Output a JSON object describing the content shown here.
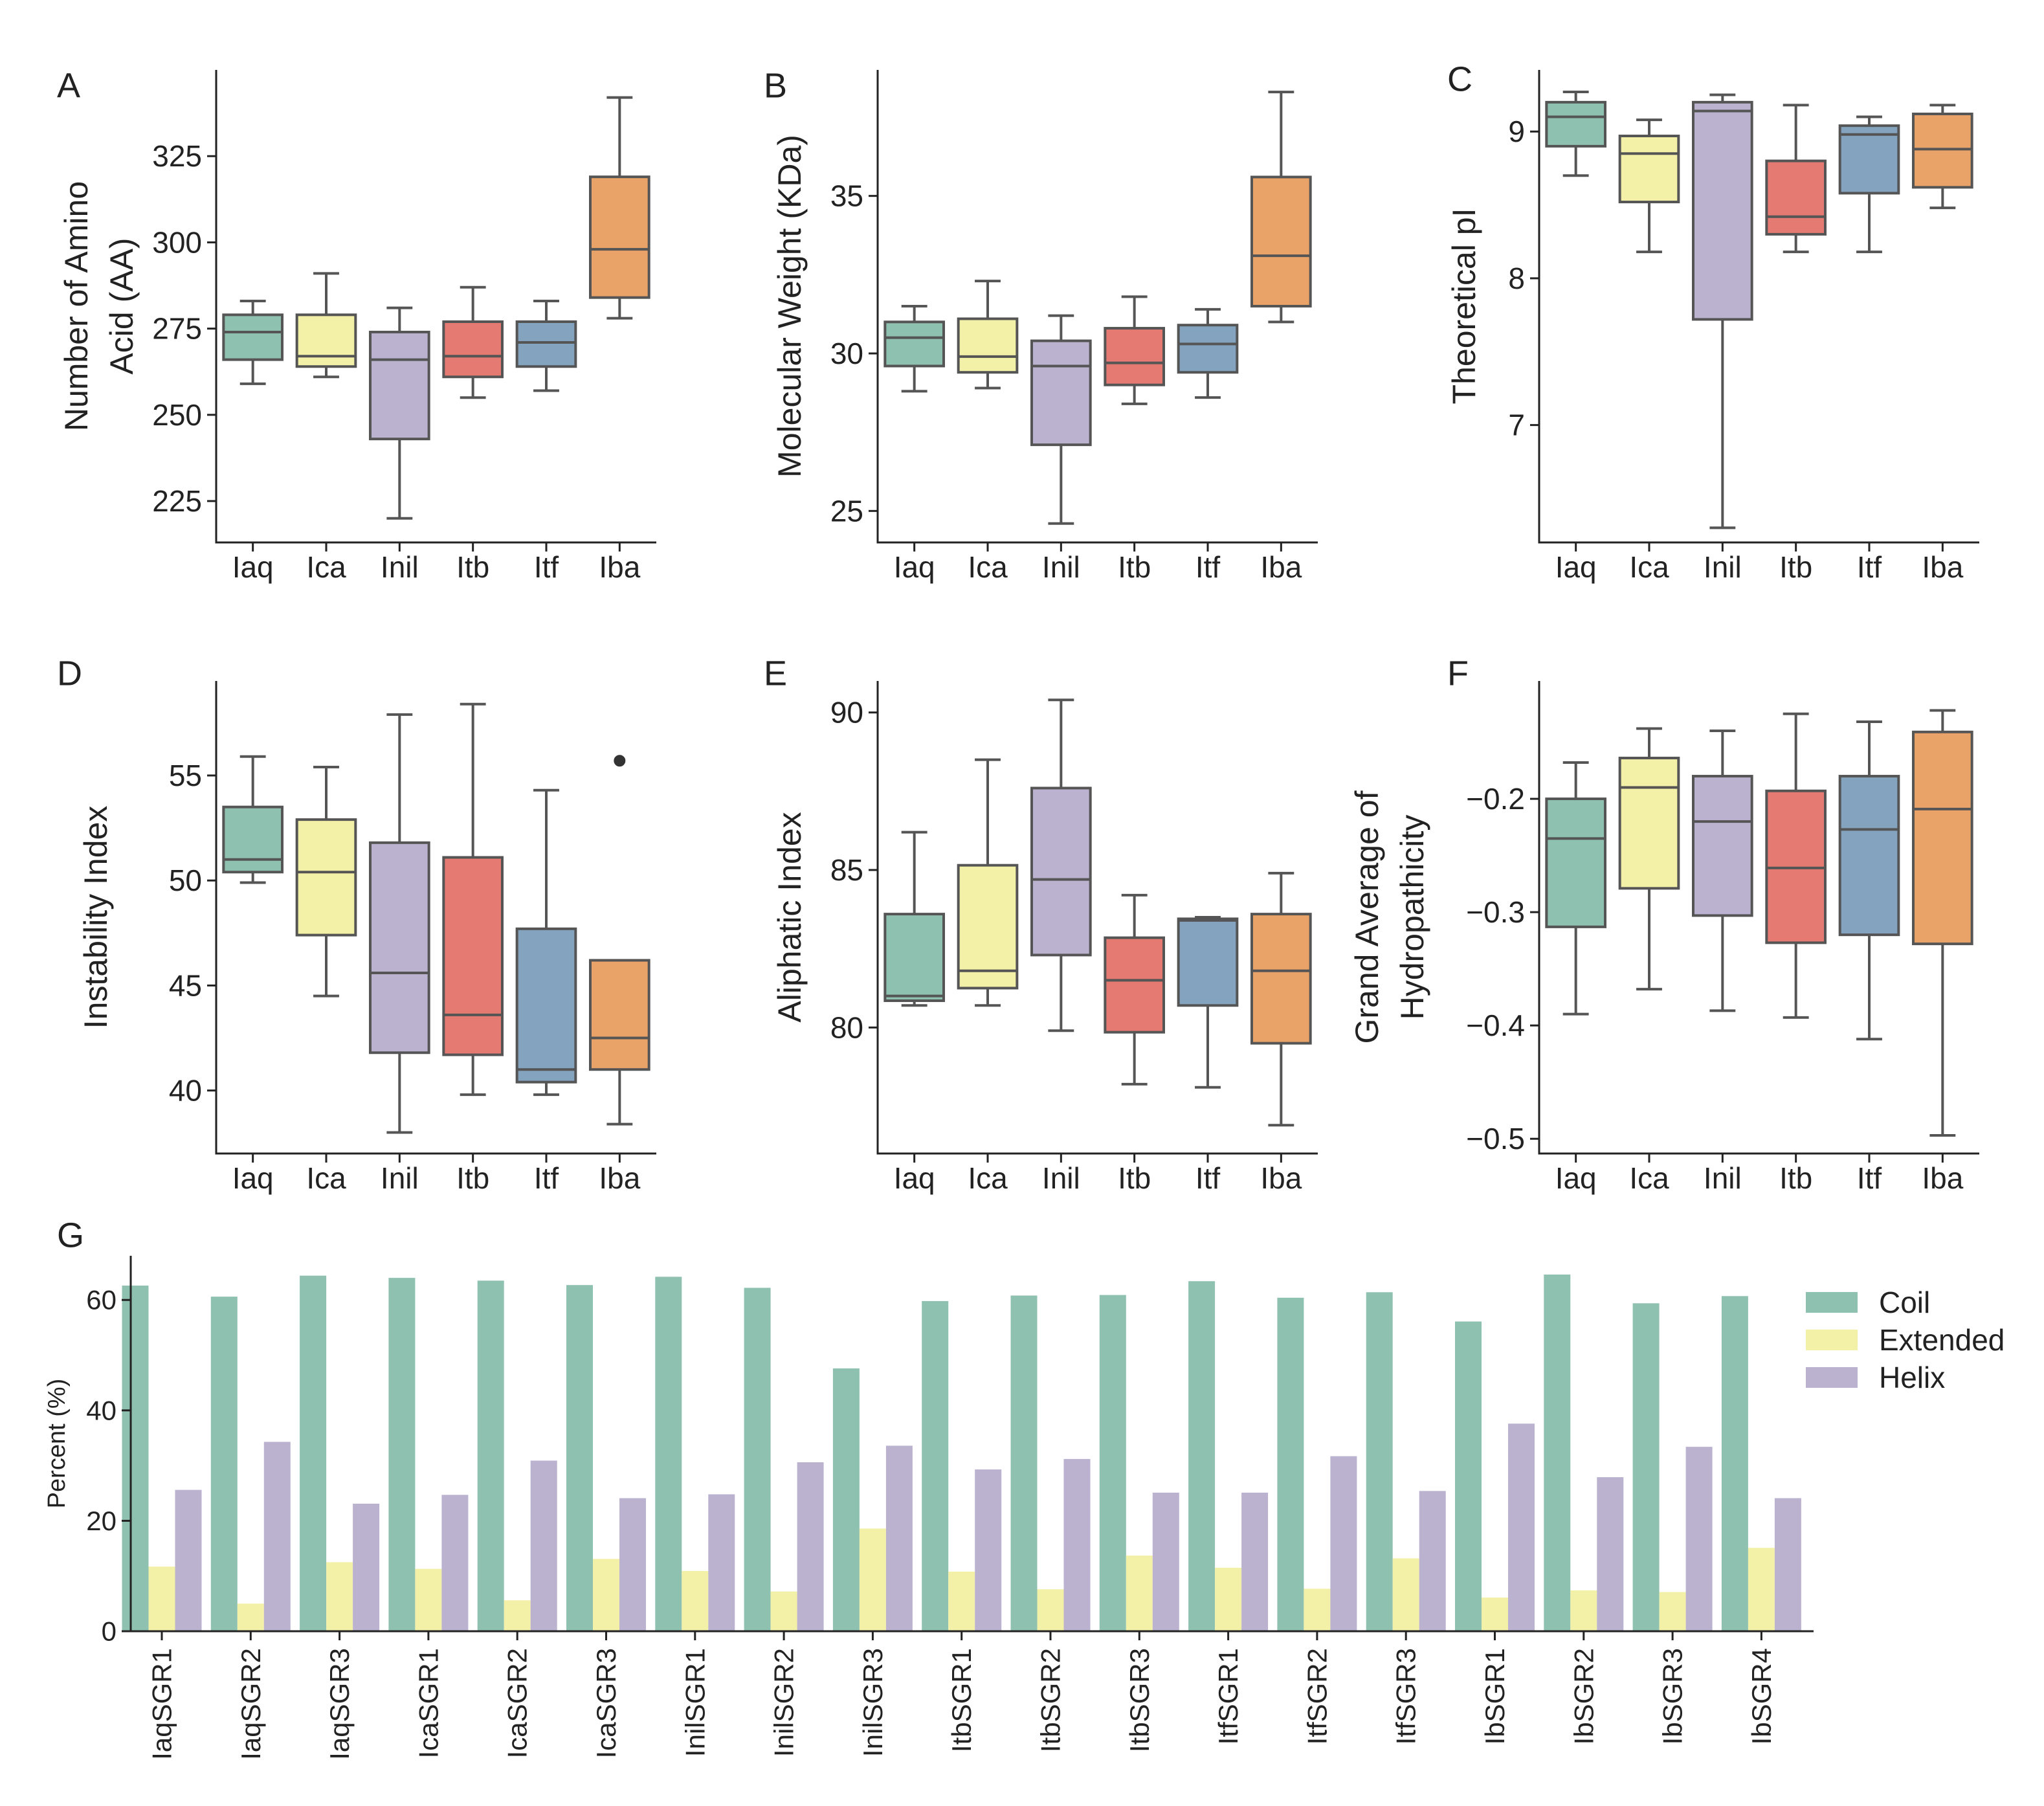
{
  "colors": {
    "Iaq": "#8fc1b1",
    "Ica": "#f3f0a8",
    "Inil": "#bbb2d0",
    "Itb": "#e57a72",
    "Itf": "#84a3be",
    "Iba": "#e9a368",
    "line": "#555555",
    "axis": "#222222",
    "coil": "#8fc1b1",
    "extended": "#f3f0a8",
    "helix": "#bbb2d0"
  },
  "chart_data": [
    {
      "type": "boxplot",
      "panel": "A",
      "ylabel": [
        "Number of Amino",
        "Acid (AA)"
      ],
      "ylim": [
        213,
        350
      ],
      "yticks": [
        225,
        250,
        275,
        300,
        325
      ],
      "categories": [
        "Iaq",
        "Ica",
        "Inil",
        "Itb",
        "Itf",
        "Iba"
      ],
      "boxes": [
        {
          "min": 259,
          "q1": 266,
          "median": 274,
          "q3": 279,
          "max": 283
        },
        {
          "min": 261,
          "q1": 264,
          "median": 267,
          "q3": 279,
          "max": 291
        },
        {
          "min": 220,
          "q1": 243,
          "median": 266,
          "q3": 274,
          "max": 281
        },
        {
          "min": 255,
          "q1": 261,
          "median": 267,
          "q3": 277,
          "max": 287
        },
        {
          "min": 257,
          "q1": 264,
          "median": 271,
          "q3": 277,
          "max": 283
        },
        {
          "min": 278,
          "q1": 284,
          "median": 298,
          "q3": 319,
          "max": 342
        }
      ]
    },
    {
      "type": "boxplot",
      "panel": "B",
      "ylabel": [
        "Molecular Weight (KDa)"
      ],
      "ylim": [
        24.0,
        39.0
      ],
      "yticks": [
        25,
        30,
        35
      ],
      "categories": [
        "Iaq",
        "Ica",
        "Inil",
        "Itb",
        "Itf",
        "Iba"
      ],
      "boxes": [
        {
          "min": 28.8,
          "q1": 29.6,
          "median": 30.5,
          "q3": 31.0,
          "max": 31.5
        },
        {
          "min": 28.9,
          "q1": 29.4,
          "median": 29.9,
          "q3": 31.1,
          "max": 32.3
        },
        {
          "min": 24.6,
          "q1": 27.1,
          "median": 29.6,
          "q3": 30.4,
          "max": 31.2
        },
        {
          "min": 28.4,
          "q1": 29.0,
          "median": 29.7,
          "q3": 30.8,
          "max": 31.8
        },
        {
          "min": 28.6,
          "q1": 29.4,
          "median": 30.3,
          "q3": 30.9,
          "max": 31.4
        },
        {
          "min": 31.0,
          "q1": 31.5,
          "median": 33.1,
          "q3": 35.6,
          "max": 38.3
        }
      ]
    },
    {
      "type": "boxplot",
      "panel": "C",
      "ylabel": [
        "Theoretical pI"
      ],
      "ylim": [
        6.2,
        9.42
      ],
      "yticks": [
        7,
        8,
        9
      ],
      "categories": [
        "Iaq",
        "Ica",
        "Inil",
        "Itb",
        "Itf",
        "Iba"
      ],
      "boxes": [
        {
          "min": 8.7,
          "q1": 8.9,
          "median": 9.1,
          "q3": 9.2,
          "max": 9.27
        },
        {
          "min": 8.18,
          "q1": 8.52,
          "median": 8.85,
          "q3": 8.97,
          "max": 9.08
        },
        {
          "min": 6.3,
          "q1": 7.72,
          "median": 9.14,
          "q3": 9.2,
          "max": 9.25
        },
        {
          "min": 8.18,
          "q1": 8.3,
          "median": 8.42,
          "q3": 8.8,
          "max": 9.18
        },
        {
          "min": 8.18,
          "q1": 8.58,
          "median": 8.98,
          "q3": 9.04,
          "max": 9.1
        },
        {
          "min": 8.48,
          "q1": 8.62,
          "median": 8.88,
          "q3": 9.12,
          "max": 9.18
        }
      ]
    },
    {
      "type": "boxplot",
      "panel": "D",
      "ylabel": [
        "Instability Index"
      ],
      "ylim": [
        37.0,
        59.5
      ],
      "yticks": [
        40,
        45,
        50,
        55
      ],
      "categories": [
        "Iaq",
        "Ica",
        "Inil",
        "Itb",
        "Itf",
        "Iba"
      ],
      "boxes": [
        {
          "min": 49.9,
          "q1": 50.4,
          "median": 51.0,
          "q3": 53.5,
          "max": 55.9
        },
        {
          "min": 44.5,
          "q1": 47.4,
          "median": 50.4,
          "q3": 52.9,
          "max": 55.4
        },
        {
          "min": 38.0,
          "q1": 41.8,
          "median": 45.6,
          "q3": 51.8,
          "max": 57.9
        },
        {
          "min": 39.8,
          "q1": 41.7,
          "median": 43.6,
          "q3": 51.1,
          "max": 58.4
        },
        {
          "min": 39.8,
          "q1": 40.4,
          "median": 41.0,
          "q3": 47.7,
          "max": 54.3
        },
        {
          "min": 38.4,
          "q1": 41.0,
          "median": 42.5,
          "q3": 46.2,
          "max": 46.2,
          "outliers": [
            55.7
          ]
        }
      ]
    },
    {
      "type": "boxplot",
      "panel": "E",
      "ylabel": [
        "Aliphatic Index"
      ],
      "ylim": [
        76.0,
        91.0
      ],
      "yticks": [
        80,
        85,
        90
      ],
      "categories": [
        "Iaq",
        "Ica",
        "Inil",
        "Itb",
        "Itf",
        "Iba"
      ],
      "boxes": [
        {
          "min": 80.7,
          "q1": 80.85,
          "median": 81.0,
          "q3": 83.6,
          "max": 86.2
        },
        {
          "min": 80.7,
          "q1": 81.25,
          "median": 81.8,
          "q3": 85.15,
          "max": 88.5
        },
        {
          "min": 79.9,
          "q1": 82.3,
          "median": 84.7,
          "q3": 87.6,
          "max": 90.4
        },
        {
          "min": 78.2,
          "q1": 79.85,
          "median": 81.5,
          "q3": 82.85,
          "max": 84.2
        },
        {
          "min": 78.1,
          "q1": 80.7,
          "median": 83.4,
          "q3": 83.45,
          "max": 83.5
        },
        {
          "min": 76.9,
          "q1": 79.5,
          "median": 81.8,
          "q3": 83.6,
          "max": 84.9
        }
      ]
    },
    {
      "type": "boxplot",
      "panel": "F",
      "ylabel": [
        "Grand Average of",
        "Hydropathicity"
      ],
      "ylim": [
        -0.513,
        -0.096
      ],
      "yticks": [
        -0.5,
        -0.4,
        -0.3,
        -0.2
      ],
      "categories": [
        "Iaq",
        "Ica",
        "Inil",
        "Itb",
        "Itf",
        "Iba"
      ],
      "boxes": [
        {
          "min": -0.39,
          "q1": -0.313,
          "median": -0.235,
          "q3": -0.2,
          "max": -0.168
        },
        {
          "min": -0.368,
          "q1": -0.279,
          "median": -0.19,
          "q3": -0.164,
          "max": -0.138
        },
        {
          "min": -0.387,
          "q1": -0.303,
          "median": -0.22,
          "q3": -0.18,
          "max": -0.14
        },
        {
          "min": -0.393,
          "q1": -0.327,
          "median": -0.261,
          "q3": -0.193,
          "max": -0.125
        },
        {
          "min": -0.412,
          "q1": -0.32,
          "median": -0.227,
          "q3": -0.18,
          "max": -0.132
        },
        {
          "min": -0.497,
          "q1": -0.328,
          "median": -0.209,
          "q3": -0.141,
          "max": -0.122
        }
      ]
    },
    {
      "type": "bar",
      "panel": "G",
      "ylabel": "Percent (%)",
      "ylim": [
        0,
        68
      ],
      "yticks": [
        0,
        20,
        40,
        60
      ],
      "categories": [
        "IaqSGR1",
        "IaqSGR2",
        "IaqSGR3",
        "IcaSGR1",
        "IcaSGR2",
        "IcaSGR3",
        "InilSGR1",
        "InilSGR2",
        "InilSGR3",
        "ItbSGR1",
        "ItbSGR2",
        "ItbSGR3",
        "ItfSGR1",
        "ItfSGR2",
        "ItfSGR3",
        "IbSGR1",
        "IbSGR2",
        "IbSGR3",
        "IbSGR4"
      ],
      "series": [
        {
          "name": "Coil",
          "values": [
            62.6,
            60.6,
            64.4,
            64.0,
            63.5,
            62.7,
            64.2,
            62.2,
            47.6,
            59.8,
            60.8,
            60.9,
            63.4,
            60.4,
            61.4,
            56.1,
            64.6,
            59.4,
            60.7
          ]
        },
        {
          "name": "Extended",
          "values": [
            11.7,
            5.0,
            12.5,
            11.3,
            5.6,
            13.1,
            10.9,
            7.2,
            18.6,
            10.8,
            7.6,
            13.7,
            11.5,
            7.7,
            13.2,
            6.1,
            7.4,
            7.1,
            15.1
          ]
        },
        {
          "name": "Helix",
          "values": [
            25.6,
            34.3,
            23.1,
            24.7,
            30.9,
            24.1,
            24.8,
            30.6,
            33.6,
            29.3,
            31.2,
            25.1,
            25.1,
            31.7,
            25.4,
            37.6,
            27.9,
            33.4,
            24.1
          ]
        }
      ],
      "legend_position": "top-right"
    }
  ]
}
